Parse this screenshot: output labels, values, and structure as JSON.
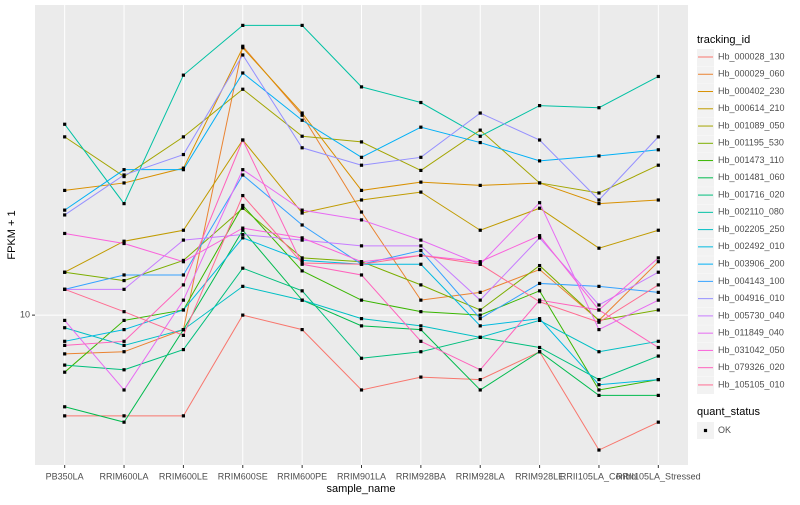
{
  "chart_data": {
    "type": "line",
    "x_label": "sample_name",
    "y_label": "FPKM + 1",
    "log_y": true,
    "grid": true,
    "categories": [
      "PB350LA",
      "RRIM600LA",
      "RRIM600LE",
      "RRIM600SE",
      "RRIM600PE",
      "RRIM901LA",
      "RRIM928BA",
      "RRIM928LA",
      "RRIM928LE",
      "RRII105LA_Control",
      "RRII105LA_Stressed"
    ],
    "ylim": [
      4.22,
      59.6
    ],
    "yticks": [
      10
    ],
    "legend_title": "tracking_id",
    "point_legend": {
      "title": "quant_status",
      "label": "OK"
    },
    "series": [
      {
        "name": "Hb_000028_130",
        "color": "#F8766D",
        "values": [
          5.6,
          5.6,
          5.6,
          10,
          9.2,
          6.5,
          7.0,
          6.9,
          8.1,
          4.6,
          5.4
        ]
      },
      {
        "name": "Hb_000029_060",
        "color": "#EA8331",
        "values": [
          8.0,
          8.1,
          9.2,
          47,
          31.6,
          18.1,
          10.9,
          11.4,
          13,
          9.7,
          13.6
        ]
      },
      {
        "name": "Hb_000402_230",
        "color": "#D89000",
        "values": [
          20.5,
          21.4,
          23.3,
          46.6,
          32,
          20.5,
          21.5,
          21.1,
          21.4,
          19,
          19.4
        ]
      },
      {
        "name": "Hb_000614_210",
        "color": "#C09B00",
        "values": [
          12.8,
          15.3,
          16.3,
          27.4,
          18.0,
          19.4,
          20.3,
          16.3,
          18.5,
          14.7,
          16.3
        ]
      },
      {
        "name": "Hb_001089_050",
        "color": "#A3A500",
        "values": [
          27.9,
          22.2,
          27.9,
          36.7,
          28.0,
          27.1,
          23.0,
          29,
          21.4,
          20.2,
          23.7
        ]
      },
      {
        "name": "Hb_001195_530",
        "color": "#7CAE00",
        "values": [
          12.8,
          12.2,
          13.7,
          18.5,
          13.9,
          13.6,
          11.9,
          10.3,
          13.3,
          9.7,
          10.3
        ]
      },
      {
        "name": "Hb_001473_110",
        "color": "#39B600",
        "values": [
          7.2,
          9.7,
          10.3,
          18.8,
          12.9,
          10.9,
          10.2,
          10,
          11.5,
          6.5,
          6.9
        ]
      },
      {
        "name": "Hb_001481_060",
        "color": "#00BB4E",
        "values": [
          5.9,
          5.4,
          9.2,
          16.3,
          10.9,
          9.4,
          9.2,
          6.5,
          8.1,
          6.3,
          6.3
        ]
      },
      {
        "name": "Hb_001716_020",
        "color": "#00BF7D",
        "values": [
          7.5,
          7.3,
          8.2,
          13.1,
          11.5,
          7.8,
          8.1,
          8.8,
          8.3,
          6.9,
          7.9
        ]
      },
      {
        "name": "Hb_002110_080",
        "color": "#00C1A3",
        "values": [
          30.0,
          19.0,
          39.8,
          53,
          53,
          37.2,
          34,
          28,
          33.4,
          33,
          39.5
        ]
      },
      {
        "name": "Hb_002205_250",
        "color": "#00BFC4",
        "values": [
          9.3,
          8.4,
          9.2,
          11.8,
          10.9,
          9.8,
          9.4,
          8.8,
          9.7,
          8.1,
          8.6
        ]
      },
      {
        "name": "Hb_002492_010",
        "color": "#00BAE0",
        "values": [
          8.6,
          9.2,
          10.3,
          15.6,
          13.7,
          13.4,
          13.4,
          9.4,
          9.8,
          6.7,
          6.9
        ]
      },
      {
        "name": "Hb_003906_200",
        "color": "#00B0F6",
        "values": [
          18.3,
          23.1,
          23.1,
          40.3,
          30.7,
          24.8,
          29.5,
          27,
          24.3,
          25,
          25.9
        ]
      },
      {
        "name": "Hb_004143_100",
        "color": "#35A2FF",
        "values": [
          11.6,
          12.6,
          12.6,
          22.4,
          16.8,
          13.4,
          14.5,
          9.8,
          12.0,
          11.8,
          11.4
        ]
      },
      {
        "name": "Hb_004916_010",
        "color": "#9590FF",
        "values": [
          17.8,
          22.4,
          25.2,
          44.7,
          26.2,
          23.7,
          24.8,
          32,
          27.4,
          19.4,
          27.9
        ]
      },
      {
        "name": "Hb_005730_040",
        "color": "#C77CFF",
        "values": [
          11.6,
          11.6,
          15.4,
          15.9,
          15.4,
          14.9,
          14.9,
          10.9,
          15.6,
          10.6,
          12.8
        ]
      },
      {
        "name": "Hb_011849_040",
        "color": "#E76BF3",
        "values": [
          9.7,
          6.5,
          10.9,
          23.1,
          18.3,
          17.3,
          15.4,
          13.4,
          19.1,
          9.2,
          10.9
        ]
      },
      {
        "name": "Hb_031042_050",
        "color": "#FA62DB",
        "values": [
          16.0,
          15.1,
          13.6,
          16.5,
          15.6,
          13.6,
          14.1,
          13.6,
          15.8,
          10.3,
          13.9
        ]
      },
      {
        "name": "Hb_079326_020",
        "color": "#FF62BC",
        "values": [
          8.4,
          8.6,
          11.9,
          27.4,
          13.4,
          12.6,
          8.6,
          7.3,
          10.9,
          10.3,
          8.3
        ]
      },
      {
        "name": "Hb_105105_010",
        "color": "#FF6C91",
        "values": [
          11.6,
          10.2,
          8.9,
          19.9,
          13.5,
          13.4,
          14.1,
          13.4,
          10.8,
          9.6,
          11.9
        ]
      }
    ]
  }
}
